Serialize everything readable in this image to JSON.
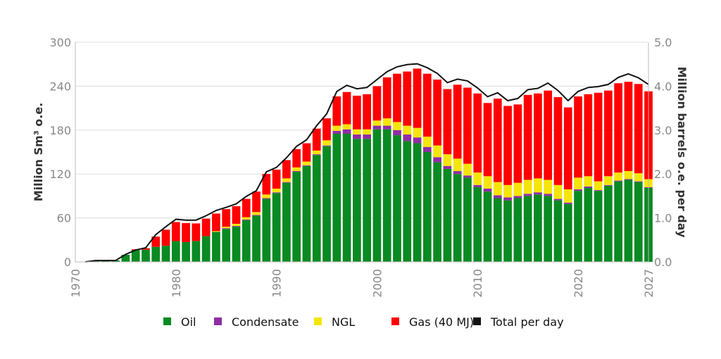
{
  "chart_data": {
    "type": "bar",
    "stacked": true,
    "x": [
      1971,
      1972,
      1973,
      1974,
      1975,
      1976,
      1977,
      1978,
      1979,
      1980,
      1981,
      1982,
      1983,
      1984,
      1985,
      1986,
      1987,
      1988,
      1989,
      1990,
      1991,
      1992,
      1993,
      1994,
      1995,
      1996,
      1997,
      1998,
      1999,
      2000,
      2001,
      2002,
      2003,
      2004,
      2005,
      2006,
      2007,
      2008,
      2009,
      2010,
      2011,
      2012,
      2013,
      2014,
      2015,
      2016,
      2017,
      2018,
      2019,
      2020,
      2021,
      2022,
      2023,
      2024,
      2025,
      2026,
      2027
    ],
    "series": [
      {
        "name": "Oil",
        "color": "#0a8a22",
        "values": [
          0.3,
          1.7,
          1.9,
          2,
          9.7,
          16.2,
          16.6,
          20.5,
          22,
          28.4,
          27,
          28.5,
          35,
          41,
          45,
          48,
          57,
          63,
          86,
          94,
          108,
          123,
          131,
          146,
          158,
          175,
          175,
          168,
          168,
          181,
          181,
          173,
          165,
          162,
          150,
          136,
          127,
          120,
          115,
          102,
          96,
          87,
          84,
          87,
          90,
          92,
          90,
          84,
          79,
          97,
          101,
          97,
          104,
          110,
          112,
          109,
          101
        ]
      },
      {
        "name": "Condensate",
        "color": "#8e2ea3",
        "values": [
          0,
          0,
          0,
          0,
          0,
          0,
          0,
          0,
          0,
          0,
          0,
          0,
          0,
          0,
          1,
          1,
          1,
          1,
          1,
          1,
          1,
          1,
          1,
          1,
          1,
          4,
          6,
          6,
          6,
          5,
          5,
          7,
          9,
          8,
          7,
          7,
          4,
          4,
          3,
          3,
          4,
          4,
          4,
          3,
          3,
          3,
          3,
          2,
          2,
          2,
          2,
          1,
          1,
          1,
          1,
          1,
          1
        ]
      },
      {
        "name": "NGL",
        "color": "#f5e50a",
        "values": [
          0,
          0,
          0,
          0,
          0,
          0,
          0,
          0,
          0,
          0,
          0,
          0,
          0,
          1,
          2,
          3,
          3,
          4,
          5,
          5,
          5,
          5,
          5,
          5,
          7,
          7,
          7,
          7,
          7,
          7,
          10,
          11,
          12,
          13,
          14,
          16,
          16,
          17,
          16,
          17,
          17,
          18,
          17,
          18,
          19,
          19,
          19,
          19,
          18,
          16,
          14,
          12,
          12,
          11,
          11,
          11,
          11
        ]
      },
      {
        "name": "Gas (40 MJ)",
        "color": "#ff0000",
        "values": [
          0,
          0,
          0,
          0,
          0,
          1,
          2,
          14,
          22,
          26,
          26,
          24,
          24,
          24,
          24,
          24,
          25,
          28,
          28,
          26,
          25,
          25,
          25,
          30,
          30,
          40,
          44,
          46,
          48,
          47,
          56,
          66,
          74,
          81,
          86,
          90,
          89,
          101,
          104,
          108,
          100,
          114,
          108,
          107,
          116,
          116,
          122,
          120,
          112,
          111,
          112,
          121,
          117,
          122,
          122,
          122,
          120
        ]
      }
    ],
    "total_per_day": {
      "name": "Total per day",
      "color": "#111111",
      "values": [
        0,
        0.03,
        0.03,
        0.03,
        0.17,
        0.27,
        0.32,
        0.62,
        0.8,
        0.97,
        0.95,
        0.95,
        1.05,
        1.17,
        1.24,
        1.32,
        1.49,
        1.62,
        2.05,
        2.15,
        2.37,
        2.63,
        2.78,
        3.1,
        3.37,
        3.88,
        4.02,
        3.94,
        3.97,
        4.15,
        4.33,
        4.44,
        4.49,
        4.51,
        4.42,
        4.29,
        4.08,
        4.16,
        4.12,
        3.96,
        3.76,
        3.85,
        3.67,
        3.72,
        3.92,
        3.95,
        4.07,
        3.9,
        3.67,
        3.88,
        3.97,
        3.99,
        4.04,
        4.2,
        4.28,
        4.19,
        4.04
      ]
    },
    "xlim": [
      1970,
      2027
    ],
    "xticks": [
      1970,
      1980,
      1990,
      2000,
      2010,
      2020,
      2027
    ],
    "ylim_left": [
      0,
      300
    ],
    "yticks_left": [
      0,
      60,
      120,
      180,
      240,
      300
    ],
    "ylabel_left": "Million Sm³ o.e.",
    "ylim_right": [
      0,
      5
    ],
    "yticks_right": [
      "0.0",
      "1.0",
      "2.0",
      "3.0",
      "4.0",
      "5.0"
    ],
    "ylabel_right": "Million barrels o.e. per day",
    "grid": "horizontal",
    "legend_placement": "bottom"
  }
}
